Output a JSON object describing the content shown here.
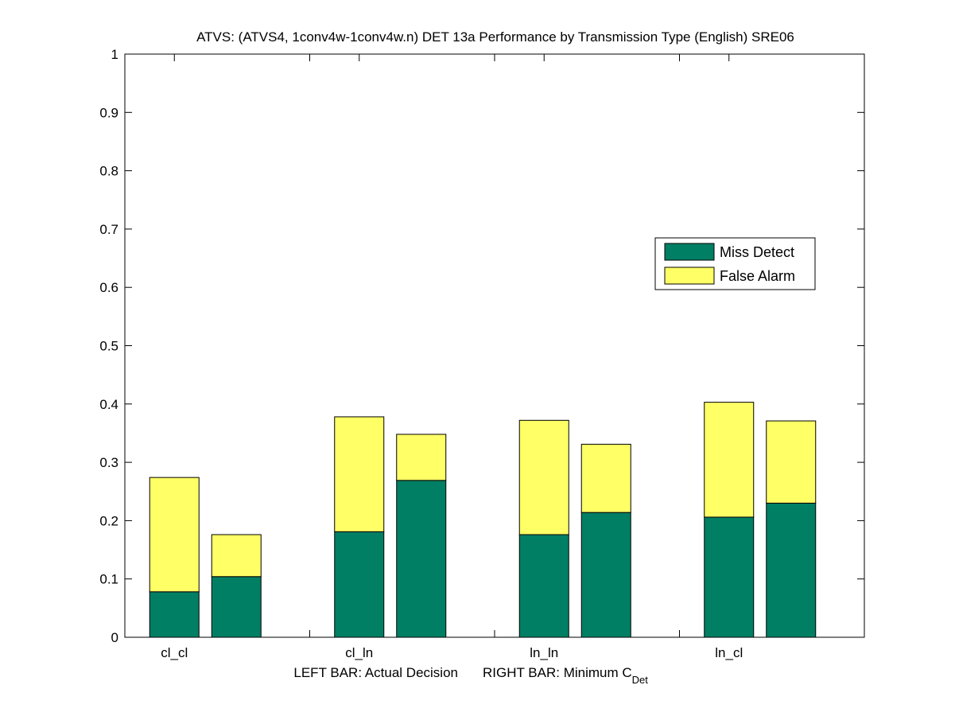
{
  "chart_data": {
    "type": "bar",
    "stacked": true,
    "title": "ATVS: (ATVS4, 1conv4w-1conv4w.n) DET 13a Performance by Transmission Type (English) SRE06",
    "xlabel": {
      "left": "LEFT BAR: Actual Decision",
      "right_prefix": "RIGHT BAR: Minimum C",
      "right_subscript": "Det"
    },
    "ylabel": "",
    "ylim": [
      0,
      1
    ],
    "yticks": [
      "0",
      "0.1",
      "0.2",
      "0.3",
      "0.4",
      "0.5",
      "0.6",
      "0.7",
      "0.8",
      "0.9",
      "1"
    ],
    "categories": [
      "cl_cl",
      "cl_ln",
      "ln_ln",
      "ln_cl"
    ],
    "bars_per_category": [
      "Actual Decision",
      "Minimum CDet"
    ],
    "series": [
      {
        "name": "Miss Detect",
        "color": "#007f64",
        "values": [
          [
            0.078,
            0.104
          ],
          [
            0.181,
            0.269
          ],
          [
            0.176,
            0.214
          ],
          [
            0.206,
            0.23
          ]
        ]
      },
      {
        "name": "False Alarm",
        "color": "#ffff66",
        "values": [
          [
            0.196,
            0.072
          ],
          [
            0.197,
            0.079
          ],
          [
            0.196,
            0.117
          ],
          [
            0.197,
            0.141
          ]
        ]
      }
    ],
    "legend_position": "right-center",
    "grid": false
  }
}
